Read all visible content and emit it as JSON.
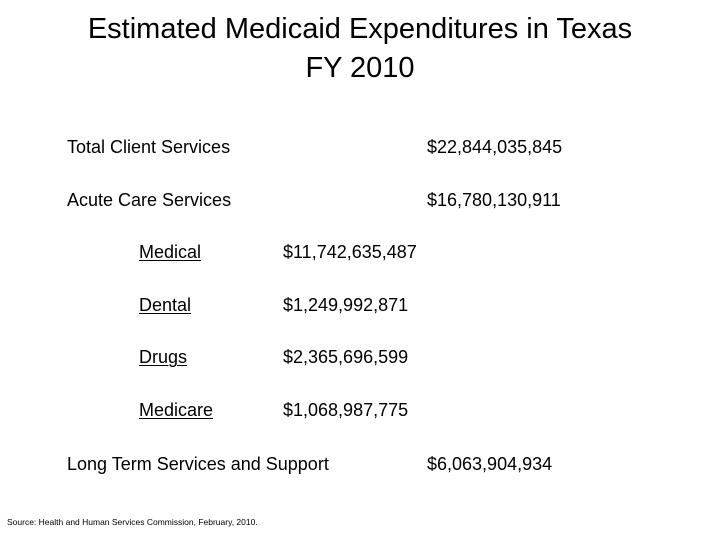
{
  "title": {
    "line1": "Estimated Medicaid Expenditures in Texas",
    "line2": "FY 2010"
  },
  "rows": {
    "total_client_services": {
      "label": "Total Client Services",
      "value": "$22,844,035,845"
    },
    "acute_care_services": {
      "label": "Acute Care Services",
      "value": "$16,780,130,911"
    },
    "acute_breakdown": [
      {
        "label": "Medical",
        "value": "$11,742,635,487"
      },
      {
        "label": "Dental",
        "value": "$1,249,992,871"
      },
      {
        "label": "Drugs",
        "value": "$2,365,696,599"
      },
      {
        "label": "Medicare",
        "value": "$1,068,987,775"
      }
    ],
    "long_term_services": {
      "label": "Long Term Services and Support",
      "value": "$6,063,904,934"
    }
  },
  "source": "Source: Health and Human Services Commission, February, 2010."
}
